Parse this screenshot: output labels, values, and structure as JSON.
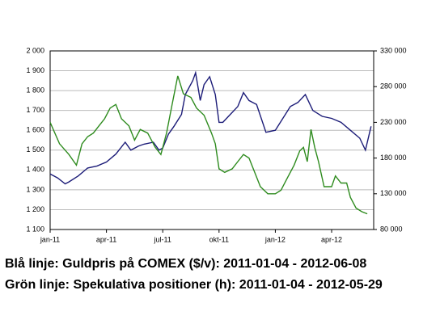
{
  "chart_data": {
    "type": "line",
    "xlim": [
      0,
      17.24
    ],
    "xticks": [
      {
        "value": 0,
        "label": "jan-11"
      },
      {
        "value": 3,
        "label": "apr-11"
      },
      {
        "value": 6,
        "label": "jul-11"
      },
      {
        "value": 9,
        "label": "okt-11"
      },
      {
        "value": 12,
        "label": "jan-12"
      },
      {
        "value": 15,
        "label": "apr-12"
      }
    ],
    "ylim": [
      1100,
      2000
    ],
    "yticks": [
      {
        "value": 1100,
        "label": "1 100"
      },
      {
        "value": 1200,
        "label": "1 200"
      },
      {
        "value": 1300,
        "label": "1 300"
      },
      {
        "value": 1400,
        "label": "1 400"
      },
      {
        "value": 1500,
        "label": "1 500"
      },
      {
        "value": 1600,
        "label": "1 600"
      },
      {
        "value": 1700,
        "label": "1 700"
      },
      {
        "value": 1800,
        "label": "1 800"
      },
      {
        "value": 1900,
        "label": "1 900"
      },
      {
        "value": 2000,
        "label": "2 000"
      }
    ],
    "y2lim": [
      80000,
      330000
    ],
    "y2ticks": [
      {
        "value": 80000,
        "label": "80 000"
      },
      {
        "value": 130000,
        "label": "130 000"
      },
      {
        "value": 180000,
        "label": "180 000"
      },
      {
        "value": 230000,
        "label": "230 000"
      },
      {
        "value": 280000,
        "label": "280 000"
      },
      {
        "value": 330000,
        "label": "330 000"
      }
    ],
    "grid": true,
    "series": [
      {
        "color": "#1c1c78",
        "axis": "y",
        "x": [
          0,
          0.4,
          0.8,
          1.0,
          1.5,
          2.0,
          2.5,
          3.0,
          3.5,
          4.0,
          4.3,
          4.7,
          5.0,
          5.5,
          5.8,
          6.0,
          6.3,
          6.6,
          7.0,
          7.2,
          7.6,
          7.75,
          8.0,
          8.2,
          8.5,
          8.8,
          9.0,
          9.2,
          9.6,
          10.0,
          10.3,
          10.6,
          11.0,
          11.5,
          12.0,
          12.4,
          12.8,
          13.2,
          13.6,
          14.0,
          14.5,
          15.0,
          15.5,
          16.0,
          16.5,
          16.8,
          17.1
        ],
        "values": [
          1380,
          1360,
          1330,
          1340,
          1370,
          1410,
          1420,
          1440,
          1480,
          1540,
          1500,
          1520,
          1530,
          1540,
          1500,
          1510,
          1580,
          1620,
          1680,
          1780,
          1850,
          1890,
          1750,
          1830,
          1870,
          1780,
          1640,
          1640,
          1680,
          1720,
          1790,
          1750,
          1730,
          1590,
          1600,
          1660,
          1720,
          1740,
          1780,
          1700,
          1670,
          1660,
          1640,
          1600,
          1560,
          1500,
          1620
        ]
      },
      {
        "color": "#2e8b1e",
        "axis": "y2",
        "x": [
          0,
          0.5,
          1.0,
          1.4,
          1.7,
          2.0,
          2.3,
          2.6,
          2.9,
          3.2,
          3.5,
          3.8,
          4.2,
          4.5,
          4.8,
          5.2,
          5.6,
          5.9,
          6.2,
          6.5,
          6.8,
          7.1,
          7.5,
          7.8,
          8.2,
          8.6,
          8.8,
          9.0,
          9.3,
          9.7,
          10.0,
          10.3,
          10.6,
          10.9,
          11.2,
          11.6,
          12.0,
          12.3,
          12.6,
          13.0,
          13.3,
          13.5,
          13.7,
          13.9,
          14.1,
          14.3,
          14.6,
          14.8,
          15.0,
          15.2,
          15.5,
          15.8,
          16.0,
          16.3,
          16.6,
          16.9
        ],
        "values": [
          230000,
          200000,
          185000,
          170000,
          200000,
          210000,
          215000,
          225000,
          235000,
          250000,
          255000,
          235000,
          225000,
          205000,
          220000,
          215000,
          195000,
          185000,
          215000,
          255000,
          295000,
          270000,
          265000,
          250000,
          240000,
          215000,
          200000,
          165000,
          160000,
          165000,
          175000,
          185000,
          180000,
          160000,
          140000,
          130000,
          130000,
          135000,
          150000,
          170000,
          190000,
          195000,
          175000,
          220000,
          195000,
          175000,
          140000,
          140000,
          140000,
          155000,
          145000,
          145000,
          125000,
          110000,
          105000,
          102000
        ]
      }
    ],
    "notes": [
      "Blå linje: Guldpris på COMEX ($/v): 2011-01-04 - 2012-06-08",
      "Grön linje: Spekulativa positioner (h): 2011-01-04 - 2012-05-29"
    ]
  }
}
